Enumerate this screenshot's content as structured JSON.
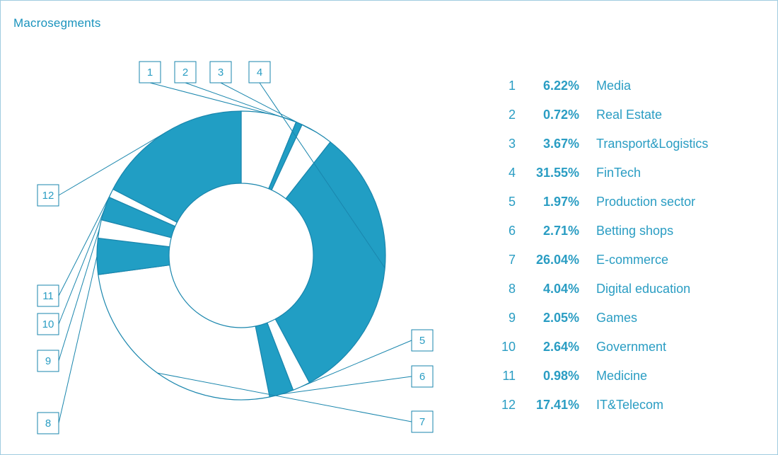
{
  "title": "Macrosegments",
  "colors": {
    "accent": "#219ec4",
    "text": "#2a9dc3",
    "line": "#1a86ad",
    "white": "#ffffff"
  },
  "chart_data": {
    "type": "pie",
    "variant": "donut",
    "title": "Macrosegments",
    "start": "12 o'clock, clockwise",
    "slices": [
      {
        "id": "1",
        "value": 6.22,
        "label": "Media",
        "filled": false
      },
      {
        "id": "2",
        "value": 0.72,
        "label": "Real Estate",
        "filled": true
      },
      {
        "id": "3",
        "value": 3.67,
        "label": "Transport&Logistics",
        "filled": false
      },
      {
        "id": "4",
        "value": 31.55,
        "label": "FinTech",
        "filled": true
      },
      {
        "id": "5",
        "value": 1.97,
        "label": "Production sector",
        "filled": false
      },
      {
        "id": "6",
        "value": 2.71,
        "label": "Betting shops",
        "filled": true
      },
      {
        "id": "7",
        "value": 26.04,
        "label": "E-commerce",
        "filled": false
      },
      {
        "id": "8",
        "value": 4.04,
        "label": "Digital education",
        "filled": true
      },
      {
        "id": "9",
        "value": 2.05,
        "label": "Games",
        "filled": false
      },
      {
        "id": "10",
        "value": 2.64,
        "label": "Government",
        "filled": true
      },
      {
        "id": "11",
        "value": 0.98,
        "label": "Medicine",
        "filled": false
      },
      {
        "id": "12",
        "value": 17.41,
        "label": "IT&Telecom",
        "filled": true
      }
    ],
    "legend": [
      {
        "num": "1",
        "value": "6.22%",
        "label": "Media"
      },
      {
        "num": "2",
        "value": "0.72%",
        "label": "Real Estate"
      },
      {
        "num": "3",
        "value": "3.67%",
        "label": "Transport&Logistics"
      },
      {
        "num": "4",
        "value": "31.55%",
        "label": "FinTech"
      },
      {
        "num": "5",
        "value": "1.97%",
        "label": "Production sector"
      },
      {
        "num": "6",
        "value": "2.71%",
        "label": "Betting shops"
      },
      {
        "num": "7",
        "value": "26.04%",
        "label": "E-commerce"
      },
      {
        "num": "8",
        "value": "4.04%",
        "label": "Digital education"
      },
      {
        "num": "9",
        "value": "2.05%",
        "label": "Games"
      },
      {
        "num": "10",
        "value": "2.64%",
        "label": "Government"
      },
      {
        "num": "11",
        "value": "0.98%",
        "label": "Medicine"
      },
      {
        "num": "12",
        "value": "17.41%",
        "label": "IT&Telecom"
      }
    ]
  }
}
